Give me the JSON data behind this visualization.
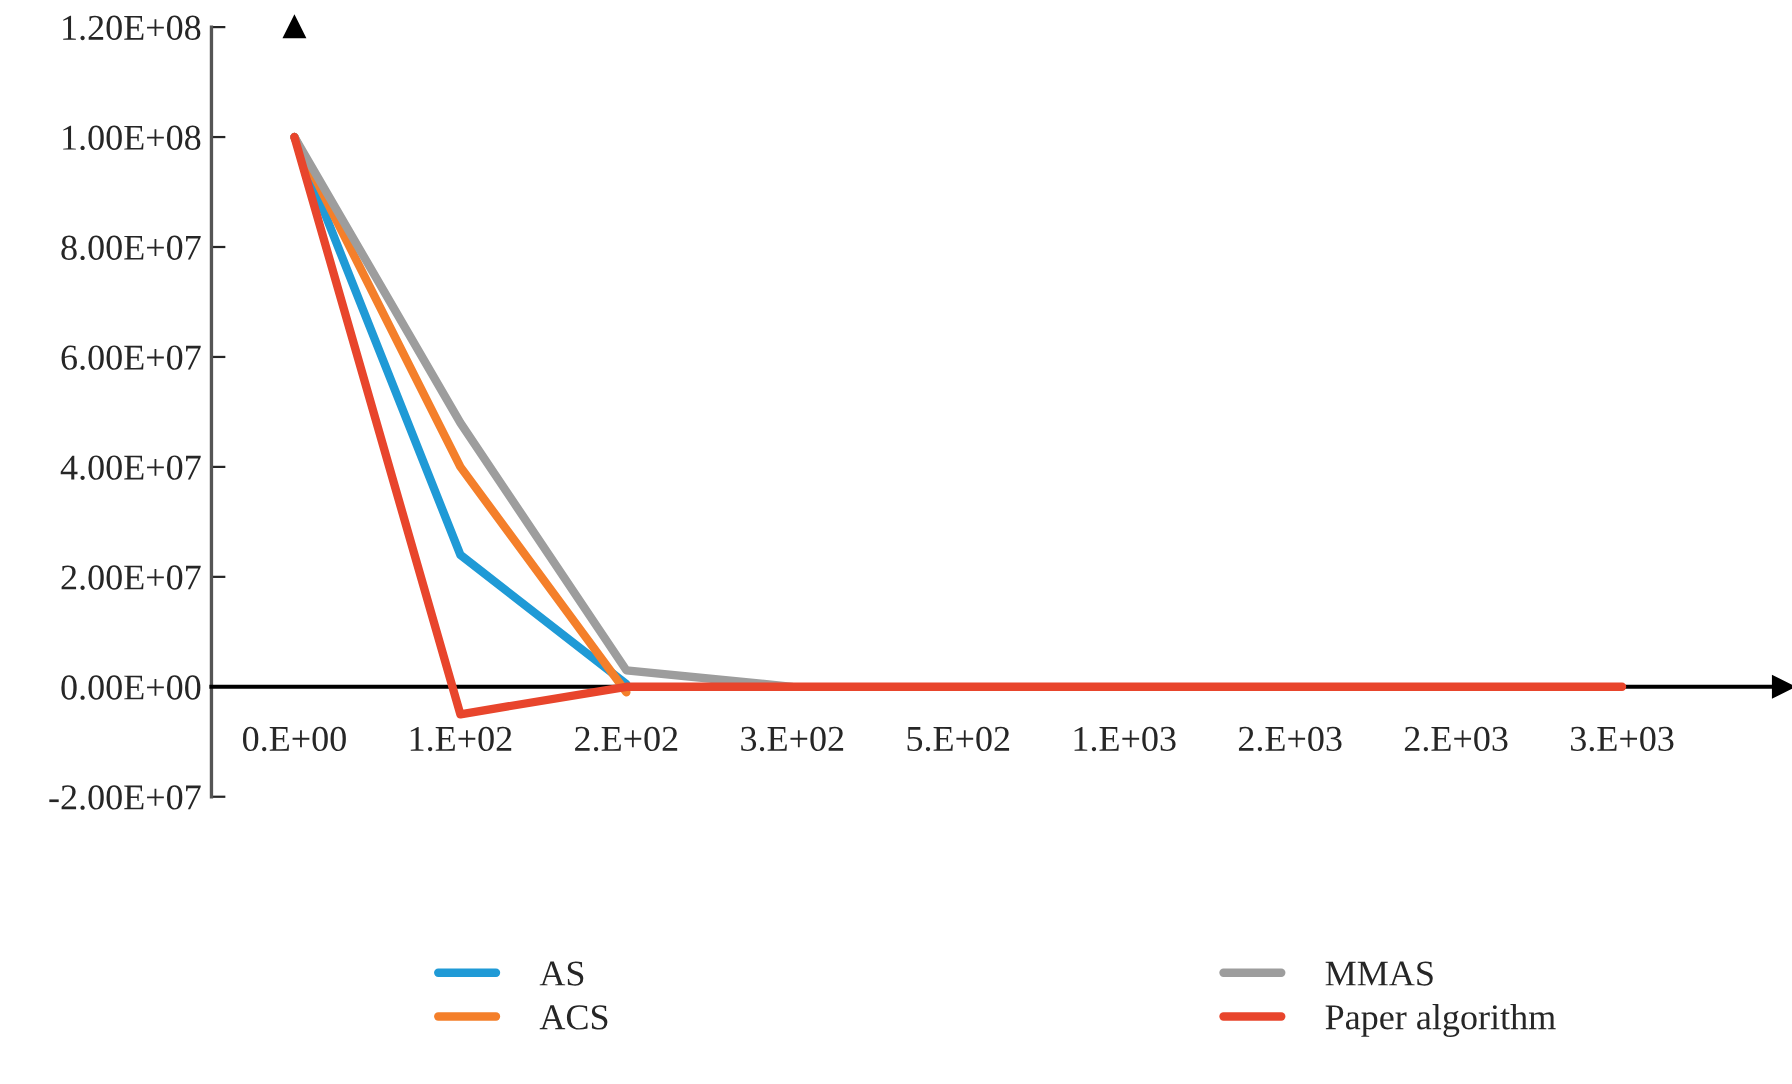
{
  "chart_data": {
    "type": "line",
    "categories": [
      "0.E+00",
      "1.E+02",
      "2.E+02",
      "3.E+02",
      "5.E+02",
      "1.E+03",
      "2.E+03",
      "2.E+03",
      "3.E+03"
    ],
    "series": [
      {
        "name": "AS",
        "color": "#1f9ad6",
        "values": [
          100000000,
          24000000,
          500000,
          null,
          null,
          null,
          null,
          null,
          null
        ]
      },
      {
        "name": "ACS",
        "color": "#f47f2a",
        "values": [
          100000000,
          40000000,
          -1000000,
          null,
          null,
          null,
          null,
          null,
          null
        ]
      },
      {
        "name": "MMAS",
        "color": "#9d9d9d",
        "values": [
          100000000,
          48000000,
          3000000,
          0,
          null,
          null,
          null,
          null,
          null
        ]
      },
      {
        "name": "Paper algorithm",
        "color": "#e8452c",
        "values": [
          100000000,
          -5000000,
          0,
          0,
          0,
          0,
          0,
          0,
          0
        ]
      }
    ],
    "ylim": [
      -20000000,
      120000000
    ],
    "yticks": [
      {
        "value": -20000000,
        "label": "-2.00E+07"
      },
      {
        "value": 0,
        "label": "0.00E+00"
      },
      {
        "value": 20000000,
        "label": "2.00E+07"
      },
      {
        "value": 40000000,
        "label": "4.00E+07"
      },
      {
        "value": 60000000,
        "label": "6.00E+07"
      },
      {
        "value": 80000000,
        "label": "8.00E+07"
      },
      {
        "value": 100000000,
        "label": "1.00E+08"
      },
      {
        "value": 120000000,
        "label": "1.20E+08"
      }
    ],
    "grid": false,
    "legend": "bottom",
    "marker": "none",
    "line_style": "solid"
  }
}
